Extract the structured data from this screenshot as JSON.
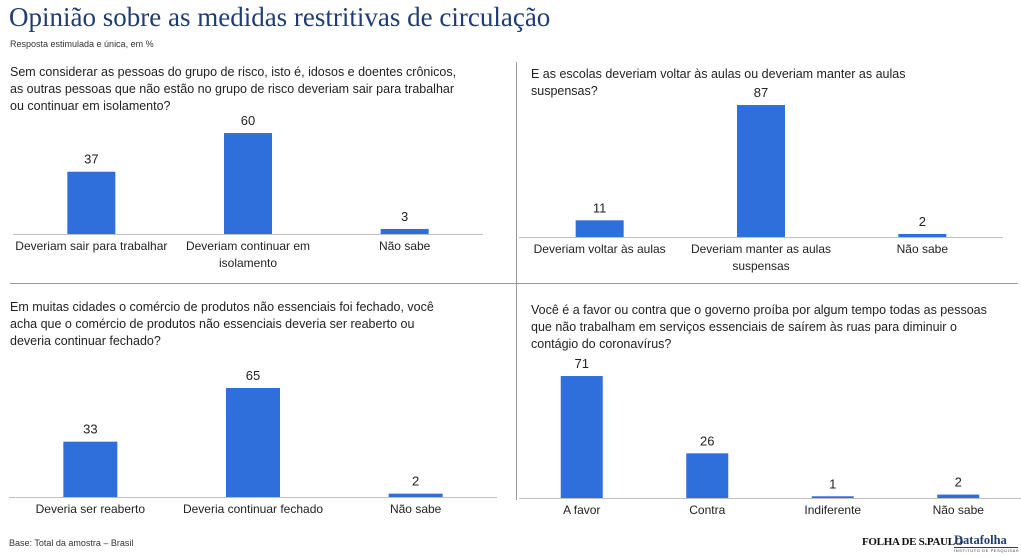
{
  "header": {
    "title": "Opinião sobre as medidas restritivas de circulação",
    "subtitle": "Resposta estimulada e única, em %"
  },
  "footer": {
    "base": "Base: Total da amostra – Brasil",
    "logo_folha": "FOLHA DE S.PAULO",
    "logo_datafolha": "Datafolha",
    "logo_datafolha_tag": "INSTITUTO DE PESQUISAS"
  },
  "colors": {
    "bar": "#2f6fdc",
    "axis": "#bfbfbf",
    "title": "#1f3d73"
  },
  "chart_data": [
    {
      "type": "bar",
      "title": "Sem considerar as pessoas do grupo de risco, isto é, idosos e doentes crônicos, as outras pessoas que não estão no grupo de risco deveriam sair para trabalhar ou continuar em isolamento?",
      "categories": [
        [
          "Deveriam sair para trabalhar"
        ],
        [
          "Deveriam continuar em",
          "isolamento"
        ],
        [
          "Não sabe"
        ]
      ],
      "values": [
        37,
        60,
        3
      ],
      "unit": "%",
      "ylim": [
        0,
        100
      ]
    },
    {
      "type": "bar",
      "title": "E as escolas deveriam voltar às aulas ou deveriam manter as aulas suspensas?",
      "categories": [
        [
          "Deveriam voltar às aulas"
        ],
        [
          "Deveriam manter as aulas",
          "suspensas"
        ],
        [
          "Não sabe"
        ]
      ],
      "values": [
        11,
        87,
        2
      ],
      "unit": "%",
      "ylim": [
        0,
        100
      ]
    },
    {
      "type": "bar",
      "title": "Em muitas cidades o comércio de produtos não essenciais foi fechado, você acha que o comércio de produtos não essenciais deveria ser reaberto ou deveria continuar fechado?",
      "categories": [
        [
          "Deveria ser reaberto"
        ],
        [
          "Deveria continuar fechado"
        ],
        [
          "Não sabe"
        ]
      ],
      "values": [
        33,
        65,
        2
      ],
      "unit": "%",
      "ylim": [
        0,
        100
      ]
    },
    {
      "type": "bar",
      "title": "Você é a favor ou contra que o governo proíba por algum tempo todas as pessoas que não trabalham em serviços essenciais de saírem às ruas para diminuir o contágio do coronavírus?",
      "categories": [
        [
          "A favor"
        ],
        [
          "Contra"
        ],
        [
          "Indiferente"
        ],
        [
          "Não sabe"
        ]
      ],
      "values": [
        71,
        26,
        1,
        2
      ],
      "unit": "%",
      "ylim": [
        0,
        100
      ]
    }
  ]
}
